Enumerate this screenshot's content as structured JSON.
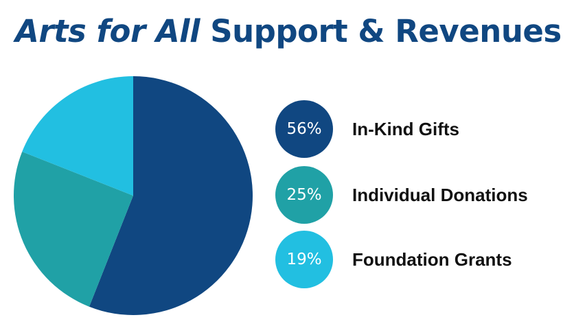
{
  "title": {
    "italic_part": "Arts for All",
    "rest": "Support & Revenues"
  },
  "colors": {
    "title": "#104781",
    "in_kind": "#104781",
    "individual": "#20A1A6",
    "foundation": "#22BFE1"
  },
  "chart_data": {
    "type": "pie",
    "title": "Arts for All Support & Revenues",
    "series": [
      {
        "name": "In-Kind Gifts",
        "value": 56,
        "label": "56%",
        "color": "#104781"
      },
      {
        "name": "Individual Donations",
        "value": 25,
        "label": "25%",
        "color": "#20A1A6"
      },
      {
        "name": "Foundation Grants",
        "value": 19,
        "label": "19%",
        "color": "#22BFE1"
      }
    ],
    "start": "top",
    "direction": "clockwise",
    "legend_position": "right"
  }
}
